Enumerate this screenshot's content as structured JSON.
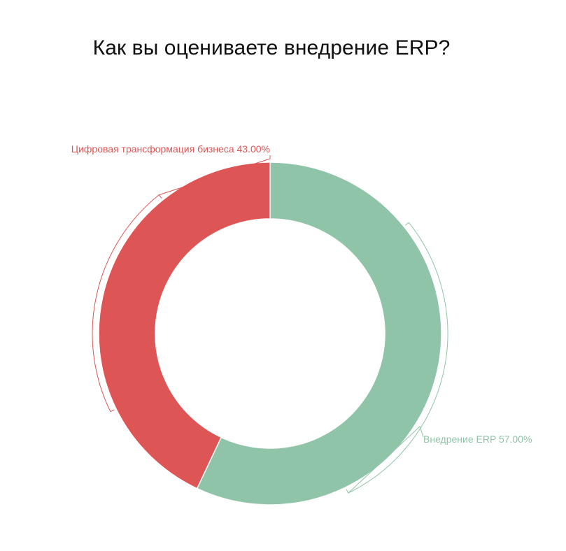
{
  "chart_data": {
    "type": "pie",
    "variant": "donut",
    "title": "Как вы оцениваете внедрение ERP?",
    "slices": [
      {
        "name": "Внедрение ERP",
        "value": 57.0,
        "label": "Внедрение ERP 57.00%",
        "color": "#90c4a8"
      },
      {
        "name": "Цифровая трансформация бизнеса",
        "value": 43.0,
        "label": "Цифровая трансформация бизнеса 43.00%",
        "color": "#dd5555"
      }
    ],
    "legend": false,
    "unit": "%"
  }
}
